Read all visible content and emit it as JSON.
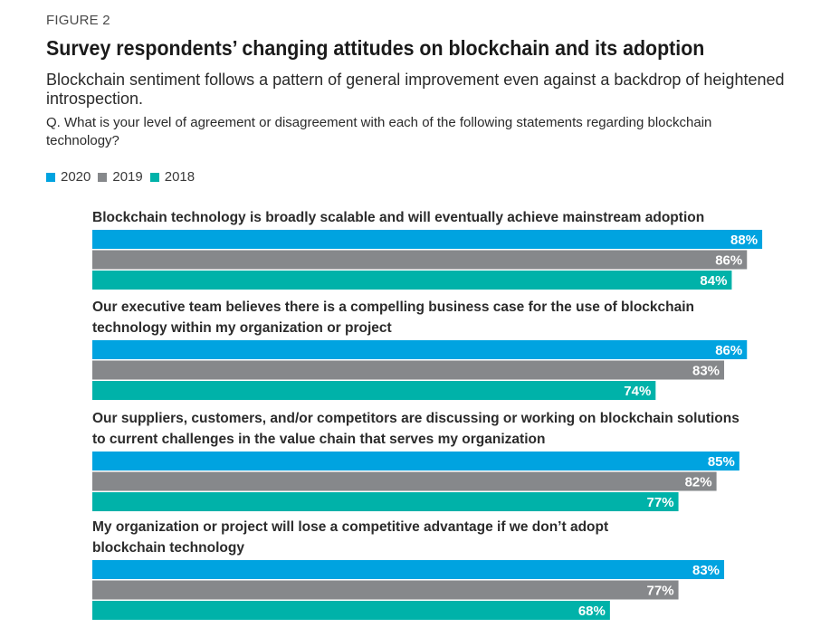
{
  "figure_label": "FIGURE 2",
  "title": "Survey respondents’ changing attitudes on blockchain and its adoption",
  "subtitle": "Blockchain sentiment follows a pattern of general improvement even against a backdrop of heightened introspection.",
  "question": "Q. What is your level of agreement or disagreement with each of the following statements regarding blockchain technology?",
  "colors": {
    "2020": "#00a3e0",
    "2019": "#86888b",
    "2018": "#00b2a9"
  },
  "chart_data": {
    "type": "bar",
    "orientation": "horizontal",
    "legend_position": "top-left",
    "grid": false,
    "xlim": [
      0,
      100
    ],
    "categories": [
      [
        "Blockchain technology is broadly scalable and will eventually achieve mainstream adoption"
      ],
      [
        "Our executive team believes there is a compelling business case for the use of blockchain",
        "technology within my organization or project"
      ],
      [
        "Our suppliers, customers, and/or competitors are discussing or working on blockchain solutions",
        "to current challenges in the value chain that serves my organization"
      ],
      [
        "My organization or project will lose a competitive advantage if we don’t adopt",
        "blockchain technology"
      ]
    ],
    "series": [
      {
        "name": "2020",
        "values": [
          88,
          86,
          85,
          83
        ]
      },
      {
        "name": "2019",
        "values": [
          86,
          83,
          82,
          77
        ]
      },
      {
        "name": "2018",
        "values": [
          84,
          74,
          77,
          68
        ]
      }
    ],
    "value_suffix": "%"
  }
}
